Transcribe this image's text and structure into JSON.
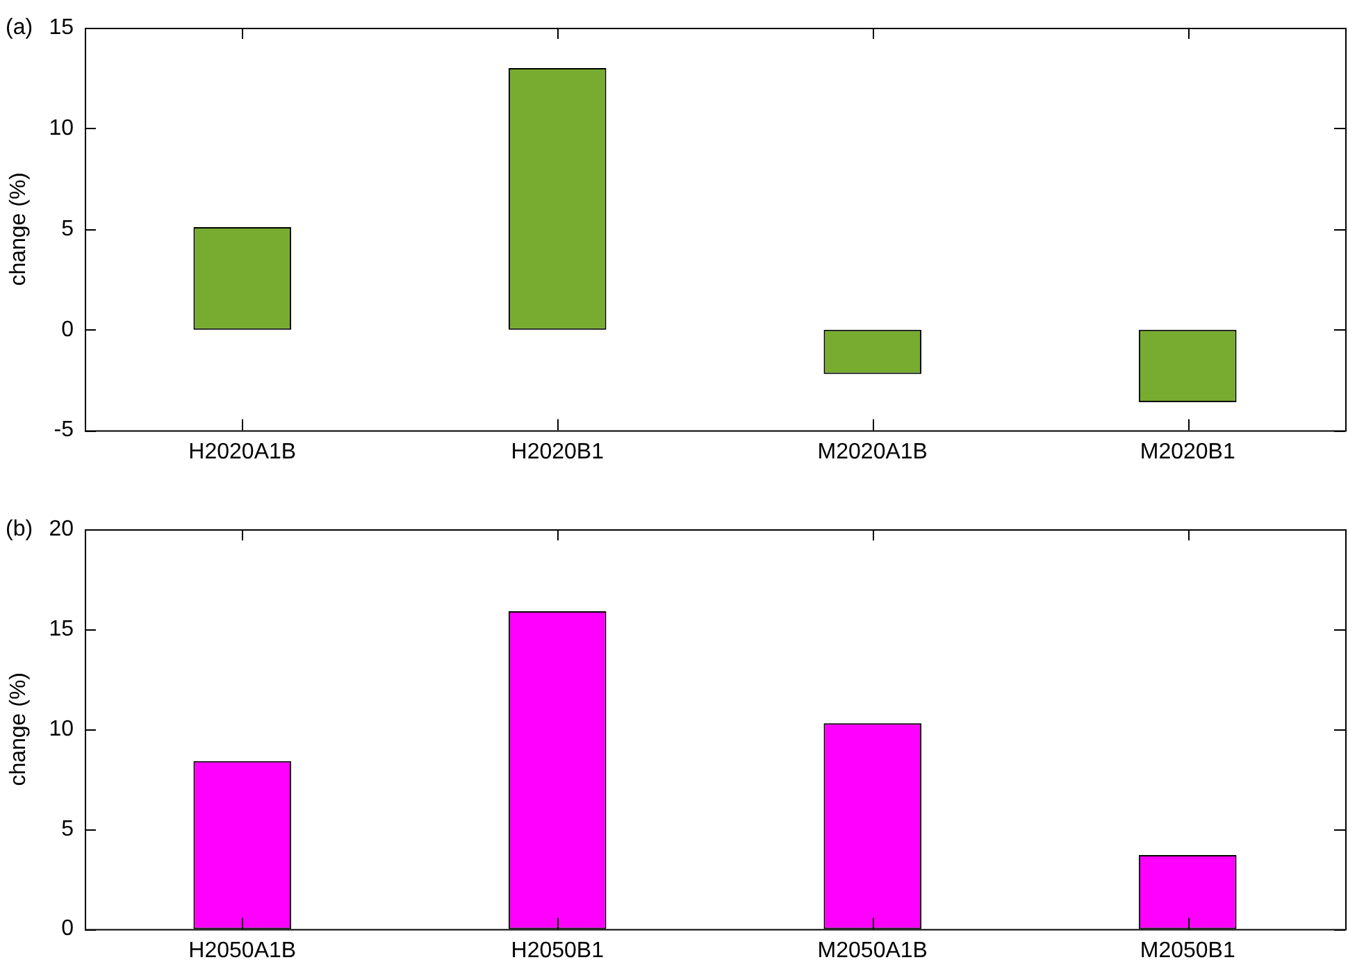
{
  "chart_data": [
    {
      "type": "bar",
      "title": "(a)",
      "ylabel": "change (%)",
      "categories": [
        "H2020A1B",
        "H2020B1",
        "M2020A1B",
        "M2020B1"
      ],
      "series": [
        {
          "color": "#77ac30",
          "values": [
            5.1,
            13.0,
            -2.2,
            -3.6
          ]
        }
      ],
      "ylim": [
        -5,
        15
      ],
      "yticks": [
        -5,
        0,
        5,
        10,
        15
      ],
      "grid": false,
      "legend": false
    },
    {
      "type": "bar",
      "title": "(b)",
      "ylabel": "change (%)",
      "categories": [
        "H2050A1B",
        "H2050B1",
        "M2050A1B",
        "M2050B1"
      ],
      "series": [
        {
          "color": "#ff00ff",
          "values": [
            8.4,
            15.9,
            10.3,
            3.7
          ]
        }
      ],
      "ylim": [
        0,
        20
      ],
      "yticks": [
        0,
        5,
        10,
        15,
        20
      ],
      "grid": false,
      "legend": false
    }
  ]
}
